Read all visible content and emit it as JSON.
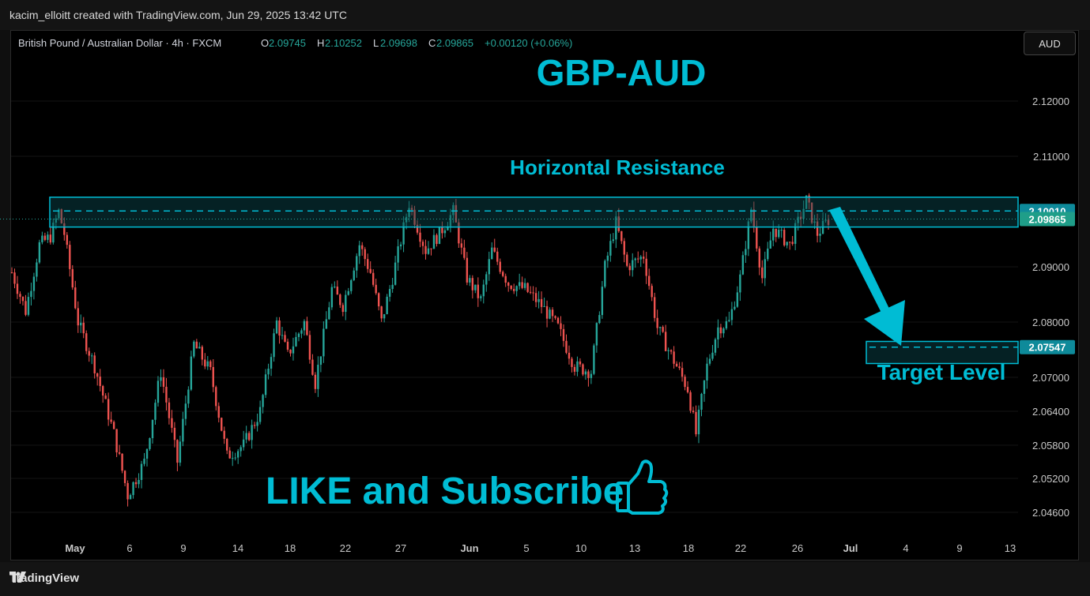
{
  "header": {
    "credit": "kacim_elloitt created with TradingView.com, Jun 29, 2025 13:42 UTC"
  },
  "legend": {
    "symbol": "British Pound / Australian Dollar · 4h · FXCM",
    "o_label": "O",
    "o_value": "2.09745",
    "h_label": "H",
    "h_value": "2.10252",
    "l_label": "L",
    "l_value": "2.09698",
    "c_label": "C",
    "c_value": "2.09865",
    "change": "+0.00120 (+0.06%)"
  },
  "currency_button": "AUD",
  "footer": {
    "brand": "TradingView",
    "logo_icon": "tradingview-logo-icon"
  },
  "colors": {
    "up": "#26a69a",
    "down": "#ef5350",
    "accent": "#00bcd4",
    "zone_fill": "#0a4a50"
  },
  "chart_data": {
    "type": "candlestick",
    "title": "GBP-AUD",
    "annotations": {
      "resistance_label": "Horizontal Resistance",
      "target_label": "Target Level",
      "cta": "LIKE and Subscribe",
      "cta_icon": "thumbs-up-icon"
    },
    "price_axis": {
      "ticks": [
        "2.12000",
        "2.11000",
        "2.09000",
        "2.08000",
        "2.07000",
        "2.06400",
        "2.05800",
        "2.05200",
        "2.04600"
      ],
      "badges": [
        {
          "value": "2.10010",
          "price": 2.1001,
          "style": "zone"
        },
        {
          "value": "2.09865",
          "price": 2.09865,
          "style": "last"
        },
        {
          "value": "2.07547",
          "price": 2.07547,
          "style": "zone"
        }
      ]
    },
    "time_axis": {
      "ticks": [
        {
          "label": "May",
          "bold": true
        },
        {
          "label": "6"
        },
        {
          "label": "9"
        },
        {
          "label": "14"
        },
        {
          "label": "18"
        },
        {
          "label": "22"
        },
        {
          "label": "27"
        },
        {
          "label": "Jun",
          "bold": true
        },
        {
          "label": "5"
        },
        {
          "label": "10"
        },
        {
          "label": "13"
        },
        {
          "label": "18"
        },
        {
          "label": "22"
        },
        {
          "label": "26"
        },
        {
          "label": "Jul",
          "bold": true
        },
        {
          "label": "4"
        },
        {
          "label": "9"
        },
        {
          "label": "13"
        }
      ]
    },
    "resistance_zone": {
      "top": 2.1026,
      "bottom": 2.0972,
      "mid": 2.1001
    },
    "target_zone": {
      "top": 2.0765,
      "bottom": 2.0725,
      "mid": 2.07547
    },
    "last_price": 2.09865,
    "path_keypoints": [
      [
        0,
        2.089
      ],
      [
        5,
        2.082
      ],
      [
        10,
        2.094
      ],
      [
        14,
        2.0955
      ],
      [
        17,
        2.1
      ],
      [
        19,
        2.096
      ],
      [
        24,
        2.08
      ],
      [
        30,
        2.072
      ],
      [
        37,
        2.06
      ],
      [
        42,
        2.049
      ],
      [
        48,
        2.055
      ],
      [
        54,
        2.071
      ],
      [
        60,
        2.055
      ],
      [
        66,
        2.076
      ],
      [
        72,
        2.071
      ],
      [
        78,
        2.056
      ],
      [
        84,
        2.058
      ],
      [
        90,
        2.064
      ],
      [
        96,
        2.08
      ],
      [
        100,
        2.074
      ],
      [
        106,
        2.08
      ],
      [
        110,
        2.069
      ],
      [
        116,
        2.086
      ],
      [
        120,
        2.083
      ],
      [
        126,
        2.094
      ],
      [
        130,
        2.089
      ],
      [
        134,
        2.08
      ],
      [
        138,
        2.088
      ],
      [
        144,
        2.1015
      ],
      [
        150,
        2.093
      ],
      [
        155,
        2.096
      ],
      [
        160,
        2.1
      ],
      [
        165,
        2.088
      ],
      [
        170,
        2.084
      ],
      [
        174,
        2.093
      ],
      [
        180,
        2.087
      ],
      [
        186,
        2.086
      ],
      [
        192,
        2.083
      ],
      [
        198,
        2.079
      ],
      [
        204,
        2.072
      ],
      [
        210,
        2.071
      ],
      [
        215,
        2.09
      ],
      [
        219,
        2.098
      ],
      [
        223,
        2.09
      ],
      [
        229,
        2.092
      ],
      [
        234,
        2.079
      ],
      [
        240,
        2.073
      ],
      [
        245,
        2.068
      ],
      [
        248,
        2.06
      ],
      [
        252,
        2.072
      ],
      [
        256,
        2.079
      ],
      [
        260,
        2.08
      ],
      [
        264,
        2.088
      ],
      [
        268,
        2.1005
      ],
      [
        272,
        2.088
      ],
      [
        276,
        2.097
      ],
      [
        282,
        2.094
      ],
      [
        288,
        2.102
      ],
      [
        292,
        2.096
      ],
      [
        296,
        2.0985
      ]
    ]
  }
}
